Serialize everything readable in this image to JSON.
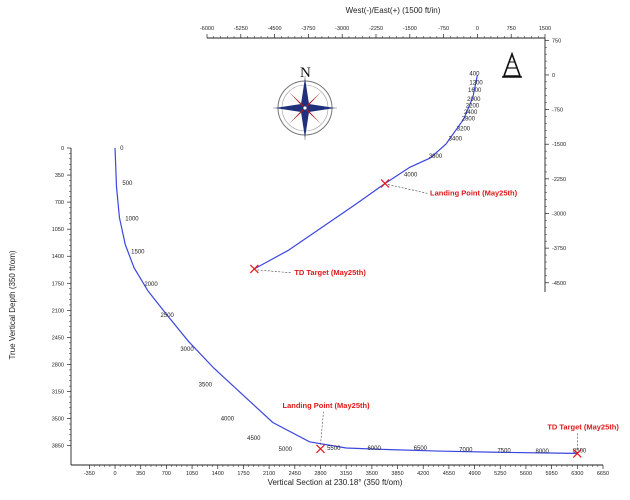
{
  "colors": {
    "path": "#3b46e0",
    "annotation": "#e01818",
    "axis": "#222222",
    "leader": "#444444"
  },
  "icons": {
    "compass": "compass-rose-icon",
    "rig": "drilling-rig-icon"
  },
  "chart_data": [
    {
      "type": "line",
      "name": "plan-view",
      "xlabel": "West(-)/East(+) (1500 ft/in)",
      "ylabel": "",
      "x_axis_position": "top",
      "y_axis_position": "right",
      "xlim": [
        -6000,
        1500
      ],
      "ylim": [
        -4700,
        800
      ],
      "x_ticks": [
        "-6000",
        "-5250",
        "-4500",
        "-3750",
        "-3000",
        "-2250",
        "-1500",
        "-750",
        "0",
        "750",
        "1500"
      ],
      "y_ticks": [
        "750",
        "0",
        "-750",
        "-1500",
        "-2250",
        "-3000",
        "-3750",
        "-4500"
      ],
      "path": {
        "x": [
          0,
          -100,
          -300,
          -700,
          -1050,
          -1500,
          -2050,
          -2700,
          -3450,
          -4200,
          -4950
        ],
        "y": [
          0,
          -480,
          -950,
          -1500,
          -1800,
          -2000,
          -2350,
          -2800,
          -3300,
          -3800,
          -4200
        ]
      },
      "md_labels": [
        {
          "text": "400",
          "x": 0,
          "y": 30
        },
        {
          "text": "1200",
          "x": 0,
          "y": -160
        },
        {
          "text": "1600",
          "x": -30,
          "y": -330
        },
        {
          "text": "2000",
          "x": -50,
          "y": -520
        },
        {
          "text": "2200",
          "x": -80,
          "y": -660
        },
        {
          "text": "2400",
          "x": -120,
          "y": -800
        },
        {
          "text": "2800",
          "x": -170,
          "y": -940
        },
        {
          "text": "3200",
          "x": -280,
          "y": -1160
        },
        {
          "text": "3400",
          "x": -460,
          "y": -1380
        },
        {
          "text": "3800",
          "x": -900,
          "y": -1760
        },
        {
          "text": "4000",
          "x": -1450,
          "y": -2160
        }
      ],
      "markers": [
        {
          "label": "Landing Point (May25th)",
          "x": -2050,
          "y": -2350
        },
        {
          "label": "TD Target (May25th)",
          "x": -4950,
          "y": -4200
        }
      ]
    },
    {
      "type": "line",
      "name": "vertical-section",
      "xlabel": "Vertical Section at 230.18° (350 ft/om)",
      "ylabel": "True Vertical Depth (350 ft/om)",
      "xlim": [
        -600,
        6650
      ],
      "ylim": [
        4100,
        0
      ],
      "x_ticks": [
        "-350",
        "0",
        "350",
        "700",
        "1050",
        "1400",
        "1750",
        "2100",
        "2450",
        "2800",
        "3150",
        "3500",
        "3850",
        "4200",
        "4550",
        "4900",
        "5250",
        "5600",
        "5950",
        "6300",
        "6650"
      ],
      "y_ticks": [
        "0",
        "350",
        "700",
        "1050",
        "1400",
        "1750",
        "2100",
        "2450",
        "2800",
        "3150",
        "3500",
        "3850"
      ],
      "path": {
        "x": [
          0,
          20,
          60,
          140,
          260,
          450,
          700,
          1000,
          1350,
          1750,
          2150,
          2650,
          3150,
          3700,
          4400,
          5200,
          5900,
          6300
        ],
        "y": [
          0,
          500,
          900,
          1250,
          1550,
          1850,
          2150,
          2500,
          2850,
          3200,
          3550,
          3800,
          3880,
          3900,
          3920,
          3935,
          3945,
          3950
        ]
      },
      "md_labels": [
        {
          "text": "0",
          "x": 70,
          "y": 0
        },
        {
          "text": "500",
          "x": 100,
          "y": 450
        },
        {
          "text": "1000",
          "x": 140,
          "y": 910
        },
        {
          "text": "1500",
          "x": 220,
          "y": 1340
        },
        {
          "text": "2000",
          "x": 400,
          "y": 1760
        },
        {
          "text": "2500",
          "x": 620,
          "y": 2160
        },
        {
          "text": "3000",
          "x": 890,
          "y": 2600
        },
        {
          "text": "3500",
          "x": 1140,
          "y": 3060
        },
        {
          "text": "4000",
          "x": 1440,
          "y": 3500
        },
        {
          "text": "4500",
          "x": 1800,
          "y": 3750
        },
        {
          "text": "5000",
          "x": 2230,
          "y": 3890
        },
        {
          "text": "5500",
          "x": 2890,
          "y": 3880
        },
        {
          "text": "6000",
          "x": 3440,
          "y": 3880
        },
        {
          "text": "6500",
          "x": 4070,
          "y": 3880
        },
        {
          "text": "7000",
          "x": 4690,
          "y": 3900
        },
        {
          "text": "7500",
          "x": 5210,
          "y": 3910
        },
        {
          "text": "8000",
          "x": 5730,
          "y": 3920
        },
        {
          "text": "8500",
          "x": 6240,
          "y": 3910
        }
      ],
      "markers": [
        {
          "label": "Landing Point (May25th)",
          "x": 2800,
          "y": 3890
        },
        {
          "label": "TD Target (May25th)",
          "x": 6300,
          "y": 3950
        }
      ]
    }
  ]
}
